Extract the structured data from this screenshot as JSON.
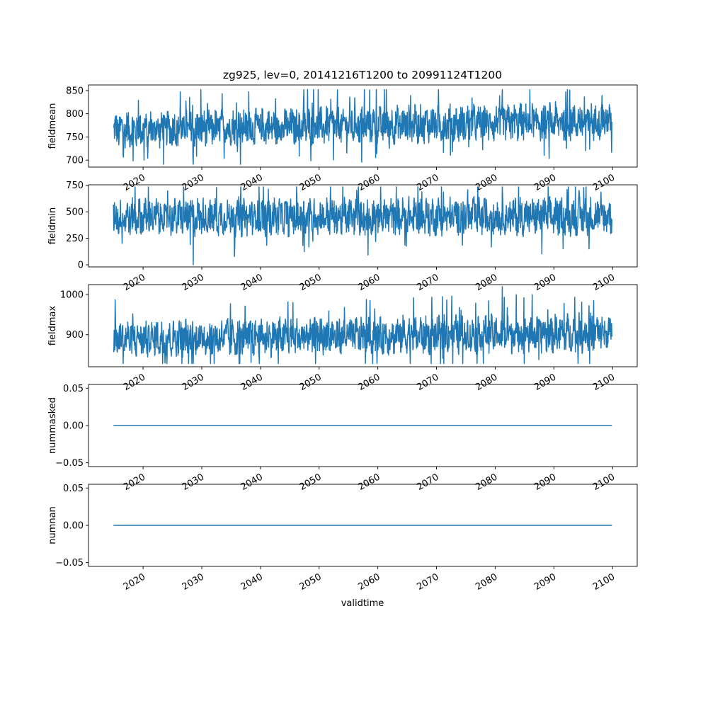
{
  "figure": {
    "title": "zg925, lev=0, 20141216T1200 to 20991124T1200",
    "xlabel": "validtime",
    "line_color": "#1f77b4"
  },
  "chart_data": [
    {
      "type": "line",
      "ylabel": "fieldmean",
      "x_range": [
        "2014-12-16",
        "2099-11-24"
      ],
      "xlim": [
        2010.7,
        2104.2
      ],
      "xticks": [
        "2020",
        "2030",
        "2040",
        "2050",
        "2060",
        "2070",
        "2080",
        "2090",
        "2100"
      ],
      "ylim": [
        685,
        862
      ],
      "yticks": [
        "700",
        "750",
        "800",
        "850"
      ],
      "trend_start": 765,
      "trend_end": 785,
      "band_half_width": 38,
      "peak_max": 852,
      "trough_min": 691,
      "grid": false
    },
    {
      "type": "line",
      "ylabel": "fieldmin",
      "x_range": [
        "2014-12-16",
        "2099-11-24"
      ],
      "xlim": [
        2010.7,
        2104.2
      ],
      "xticks": [
        "2020",
        "2030",
        "2040",
        "2050",
        "2060",
        "2070",
        "2080",
        "2090",
        "2100"
      ],
      "ylim": [
        -20,
        755
      ],
      "yticks": [
        "0",
        "250",
        "500",
        "750"
      ],
      "trend_start": 450,
      "trend_end": 460,
      "band_half_width": 170,
      "peak_max": 735,
      "trough_min": 0,
      "grid": false
    },
    {
      "type": "line",
      "ylabel": "fieldmax",
      "x_range": [
        "2014-12-16",
        "2099-11-24"
      ],
      "xlim": [
        2010.7,
        2104.2
      ],
      "xticks": [
        "2020",
        "2030",
        "2040",
        "2050",
        "2060",
        "2070",
        "2080",
        "2090",
        "2100"
      ],
      "ylim": [
        820,
        1025
      ],
      "yticks": [
        "900",
        "1000"
      ],
      "trend_start": 890,
      "trend_end": 905,
      "band_half_width": 45,
      "peak_max": 1020,
      "trough_min": 828,
      "grid": false
    },
    {
      "type": "line",
      "ylabel": "nummasked",
      "x_range": [
        "2014-12-16",
        "2099-11-24"
      ],
      "xlim": [
        2010.7,
        2104.2
      ],
      "xticks": [
        "2020",
        "2030",
        "2040",
        "2050",
        "2060",
        "2070",
        "2080",
        "2090",
        "2100"
      ],
      "ylim": [
        -0.055,
        0.055
      ],
      "yticks": [
        "−0.05",
        "0.00",
        "0.05"
      ],
      "constant_value": 0.0,
      "grid": false
    },
    {
      "type": "line",
      "ylabel": "numnan",
      "x_range": [
        "2014-12-16",
        "2099-11-24"
      ],
      "xlim": [
        2010.7,
        2104.2
      ],
      "xticks": [
        "2020",
        "2030",
        "2040",
        "2050",
        "2060",
        "2070",
        "2080",
        "2090",
        "2100"
      ],
      "ylim": [
        -0.055,
        0.055
      ],
      "yticks": [
        "−0.05",
        "0.00",
        "0.05"
      ],
      "constant_value": 0.0,
      "grid": false
    }
  ]
}
